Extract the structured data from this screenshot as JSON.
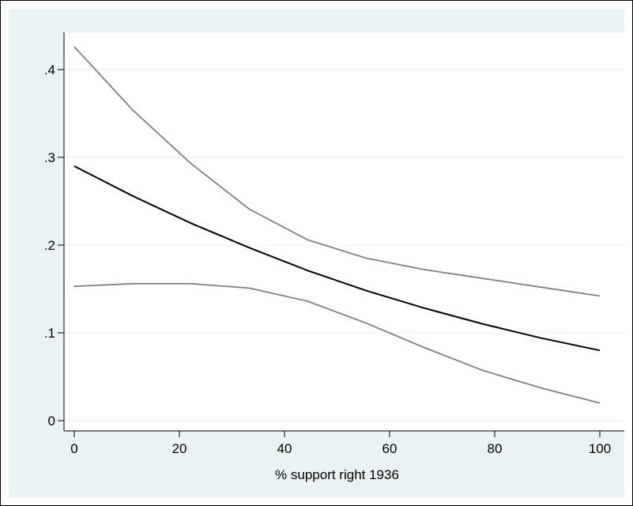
{
  "chart_data": {
    "type": "line",
    "title": "",
    "xlabel": "% support right 1936",
    "ylabel": "",
    "xlim": [
      0,
      100
    ],
    "ylim": [
      0,
      0.44
    ],
    "xticks": [
      0,
      20,
      40,
      60,
      80,
      100
    ],
    "xtick_labels": [
      "0",
      "20",
      "40",
      "60",
      "80",
      "100"
    ],
    "yticks": [
      0,
      0.1,
      0.2,
      0.3,
      0.4
    ],
    "ytick_labels": [
      "0",
      ".1",
      ".2",
      ".3",
      ".4"
    ],
    "grid": true,
    "colors": {
      "background": "#eaf2f3",
      "plot_area": "#ffffff",
      "grid": "#eaf2f3",
      "estimate": "#000000",
      "bounds": "#808080"
    },
    "x": [
      0,
      11.1,
      22.2,
      33.3,
      44.4,
      55.6,
      66.7,
      77.8,
      88.9,
      100
    ],
    "series": [
      {
        "role": "upper",
        "values": [
          0.426,
          0.354,
          0.293,
          0.241,
          0.206,
          0.185,
          0.172,
          0.162,
          0.152,
          0.142
        ]
      },
      {
        "role": "estimate",
        "values": [
          0.29,
          0.256,
          0.225,
          0.197,
          0.171,
          0.148,
          0.128,
          0.11,
          0.094,
          0.08
        ]
      },
      {
        "role": "lower",
        "values": [
          0.153,
          0.156,
          0.156,
          0.151,
          0.136,
          0.111,
          0.083,
          0.057,
          0.037,
          0.02
        ]
      }
    ]
  }
}
